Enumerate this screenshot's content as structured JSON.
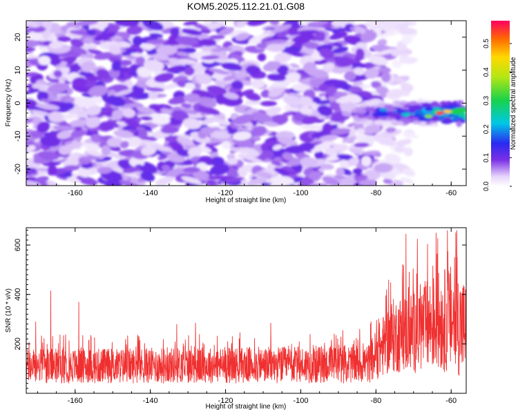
{
  "title": "KOM5.2025.112.21.01.G08",
  "chart_data": [
    {
      "type": "heatmap",
      "xlabel": "Height of straight line (km)",
      "ylabel": "Frequency (Hz)",
      "xlim": [
        -173,
        -56
      ],
      "ylim": [
        -25,
        25
      ],
      "xticks": [
        -160,
        -140,
        -120,
        -100,
        -80,
        -60
      ],
      "yticks": [
        -20,
        -10,
        0,
        10,
        20
      ],
      "colorbar": {
        "label": "Normalized spectral amplitude",
        "range": [
          0,
          0.58
        ],
        "ticks": [
          0.0,
          0.1,
          0.2,
          0.3,
          0.4,
          0.5
        ],
        "tick_labels": [
          "0.0",
          "0.1",
          "0.2",
          "0.3",
          "0.4",
          "0.5"
        ]
      },
      "description_values": {
        "background_level_left": 0.08,
        "background_fade_start_km": -82,
        "signal_band": {
          "x_from": -85,
          "x_to": -57,
          "freq_center": -3,
          "freq_halfwidth": 4,
          "peak_amplitude": 0.55,
          "peak_x": -63
        }
      }
    },
    {
      "type": "line",
      "xlabel": "Height of straight line (km)",
      "ylabel": "SNR (10 * v/v)",
      "xlim": [
        -173,
        -56
      ],
      "ylim": [
        0,
        670
      ],
      "xticks": [
        -160,
        -140,
        -120,
        -100,
        -80,
        -60
      ],
      "yticks": [
        200,
        400,
        600
      ],
      "series": [
        {
          "color": "#f03030",
          "profile": [
            {
              "x": -173,
              "mean": 110,
              "spread": 70
            },
            {
              "x": -100,
              "mean": 115,
              "spread": 75
            },
            {
              "x": -82,
              "mean": 120,
              "spread": 80
            },
            {
              "x": -76,
              "mean": 230,
              "spread": 150
            },
            {
              "x": -70,
              "mean": 250,
              "spread": 170
            },
            {
              "x": -64,
              "mean": 290,
              "spread": 200
            },
            {
              "x": -60,
              "mean": 300,
              "spread": 220
            },
            {
              "x": -56,
              "mean": 260,
              "spread": 200
            }
          ],
          "spikes": [
            [
              -170.5,
              290
            ],
            [
              -166.5,
              415
            ],
            [
              -159,
              370
            ],
            [
              -133,
              280
            ],
            [
              -128,
              285
            ],
            [
              -108,
              285
            ],
            [
              -72,
              645
            ],
            [
              -69,
              625
            ],
            [
              -64,
              650
            ],
            [
              -61,
              660
            ],
            [
              -58.5,
              660
            ]
          ]
        }
      ]
    }
  ]
}
